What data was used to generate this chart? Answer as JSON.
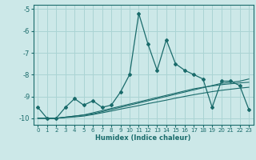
{
  "xlabel": "Humidex (Indice chaleur)",
  "background_color": "#cce8e8",
  "grid_color": "#aad4d4",
  "line_color": "#1a6b6b",
  "x_data": [
    0,
    1,
    2,
    3,
    4,
    5,
    6,
    7,
    8,
    9,
    10,
    11,
    12,
    13,
    14,
    15,
    16,
    17,
    18,
    19,
    20,
    21,
    22,
    23
  ],
  "main_line": [
    -9.5,
    -10.0,
    -10.0,
    -9.5,
    -9.1,
    -9.4,
    -9.2,
    -9.5,
    -9.4,
    -8.8,
    -8.0,
    -5.2,
    -6.6,
    -7.8,
    -6.4,
    -7.5,
    -7.8,
    -8.0,
    -8.2,
    -9.5,
    -8.3,
    -8.3,
    -8.5,
    -9.6
  ],
  "trend_line1": [
    -10.0,
    -10.0,
    -10.0,
    -9.95,
    -9.9,
    -9.85,
    -9.8,
    -9.7,
    -9.6,
    -9.5,
    -9.4,
    -9.3,
    -9.2,
    -9.1,
    -9.0,
    -8.9,
    -8.8,
    -8.7,
    -8.6,
    -8.5,
    -8.4,
    -8.35,
    -8.3,
    -8.2
  ],
  "trend_line2": [
    -10.0,
    -10.0,
    -10.0,
    -9.95,
    -9.9,
    -9.85,
    -9.75,
    -9.65,
    -9.55,
    -9.45,
    -9.35,
    -9.25,
    -9.15,
    -9.05,
    -8.95,
    -8.85,
    -8.75,
    -8.65,
    -8.58,
    -8.52,
    -8.46,
    -8.42,
    -8.38,
    -8.35
  ],
  "trend_line3": [
    -10.0,
    -10.0,
    -10.0,
    -9.97,
    -9.94,
    -9.9,
    -9.83,
    -9.75,
    -9.67,
    -9.58,
    -9.5,
    -9.42,
    -9.33,
    -9.25,
    -9.17,
    -9.08,
    -9.0,
    -8.92,
    -8.85,
    -8.78,
    -8.72,
    -8.67,
    -8.62,
    -8.58
  ],
  "ylim": [
    -10.3,
    -4.8
  ],
  "xlim": [
    -0.5,
    23.5
  ],
  "yticks": [
    -10,
    -9,
    -8,
    -7,
    -6,
    -5
  ],
  "xticks": [
    0,
    1,
    2,
    3,
    4,
    5,
    6,
    7,
    8,
    9,
    10,
    11,
    12,
    13,
    14,
    15,
    16,
    17,
    18,
    19,
    20,
    21,
    22,
    23
  ]
}
